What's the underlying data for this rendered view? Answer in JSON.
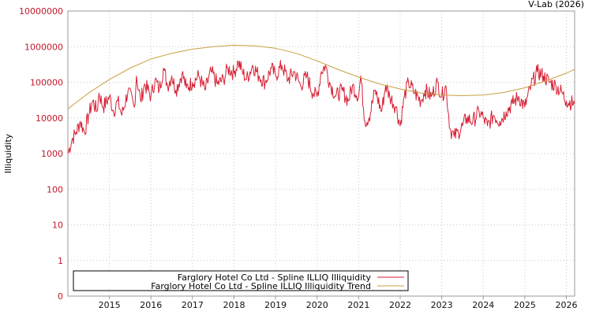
{
  "watermark": "V-Lab (2026)",
  "chart_data": {
    "type": "line",
    "title": "",
    "xlabel": "",
    "ylabel": "Illiquidity",
    "yscale": "log",
    "y_ticks": [
      {
        "value": 0,
        "label": "0"
      },
      {
        "value": 1,
        "label": "1"
      },
      {
        "value": 10,
        "label": "10"
      },
      {
        "value": 100,
        "label": "100"
      },
      {
        "value": 1000,
        "label": "1000"
      },
      {
        "value": 10000,
        "label": "10000"
      },
      {
        "value": 100000,
        "label": "100000"
      },
      {
        "value": 1000000,
        "label": "1000000"
      },
      {
        "value": 10000000,
        "label": "10000000"
      }
    ],
    "x_ticks": [
      "2015",
      "2016",
      "2017",
      "2018",
      "2019",
      "2020",
      "2021",
      "2022",
      "2023",
      "2024",
      "2025",
      "2026"
    ],
    "xlim": [
      2014.0,
      2026.2
    ],
    "grid": true,
    "legend_position": "bottom-left",
    "series": [
      {
        "name": "Farglory Hotel Co Ltd - Spline ILLIQ Illiquidity",
        "color": "#d62034",
        "x": [
          2014.0,
          2014.1,
          2014.2,
          2014.3,
          2014.4,
          2014.5,
          2014.6,
          2014.7,
          2014.75,
          2014.85,
          2015.0,
          2015.1,
          2015.2,
          2015.3,
          2015.45,
          2015.6,
          2015.65,
          2015.75,
          2015.85,
          2016.0,
          2016.1,
          2016.2,
          2016.3,
          2016.4,
          2016.5,
          2016.6,
          2016.75,
          2016.85,
          2017.0,
          2017.15,
          2017.3,
          2017.45,
          2017.6,
          2017.75,
          2017.85,
          2018.0,
          2018.1,
          2018.2,
          2018.3,
          2018.45,
          2018.6,
          2018.75,
          2018.9,
          2019.0,
          2019.15,
          2019.3,
          2019.45,
          2019.6,
          2019.75,
          2019.9,
          2020.0,
          2020.1,
          2020.2,
          2020.3,
          2020.45,
          2020.6,
          2020.75,
          2020.85,
          2021.0,
          2021.05,
          2021.15,
          2021.25,
          2021.4,
          2021.55,
          2021.65,
          2021.75,
          2021.9,
          2022.0,
          2022.1,
          2022.2,
          2022.35,
          2022.5,
          2022.6,
          2022.75,
          2022.9,
          2023.0,
          2023.1,
          2023.2,
          2023.3,
          2023.4,
          2023.5,
          2023.6,
          2023.75,
          2023.9,
          2024.0,
          2024.1,
          2024.25,
          2024.4,
          2024.55,
          2024.7,
          2024.85,
          2025.0,
          2025.15,
          2025.3,
          2025.45,
          2025.6,
          2025.75,
          2025.9,
          2026.0,
          2026.2
        ],
        "values": [
          1000,
          2500,
          4000,
          8000,
          4000,
          12000,
          30000,
          15000,
          50000,
          20000,
          40000,
          15000,
          30000,
          12000,
          60000,
          20000,
          150000,
          30000,
          90000,
          40000,
          120000,
          60000,
          250000,
          80000,
          150000,
          60000,
          180000,
          70000,
          100000,
          150000,
          60000,
          200000,
          90000,
          120000,
          250000,
          180000,
          380000,
          200000,
          120000,
          300000,
          150000,
          100000,
          250000,
          150000,
          300000,
          120000,
          200000,
          80000,
          150000,
          50000,
          40000,
          200000,
          300000,
          100000,
          40000,
          60000,
          30000,
          80000,
          40000,
          150000,
          8000,
          10000,
          60000,
          15000,
          80000,
          40000,
          20000,
          6000,
          40000,
          100000,
          50000,
          30000,
          60000,
          40000,
          100000,
          40000,
          80000,
          5000,
          3000,
          4000,
          6000,
          10000,
          8000,
          15000,
          10000,
          6000,
          12000,
          8000,
          15000,
          25000,
          40000,
          20000,
          80000,
          200000,
          150000,
          100000,
          80000,
          50000,
          30000,
          25000
        ]
      },
      {
        "name": "Farglory Hotel Co Ltd - Spline ILLIQ Illiquidity Trend",
        "color": "#c8a040",
        "x": [
          2014.0,
          2014.5,
          2015.0,
          2015.5,
          2016.0,
          2016.5,
          2017.0,
          2017.5,
          2018.0,
          2018.5,
          2019.0,
          2019.5,
          2020.0,
          2020.5,
          2021.0,
          2021.5,
          2022.0,
          2022.5,
          2023.0,
          2023.5,
          2024.0,
          2024.5,
          2025.0,
          2025.5,
          2026.0,
          2026.2
        ],
        "values": [
          18000,
          50000,
          120000,
          250000,
          450000,
          650000,
          850000,
          1000000,
          1100000,
          1050000,
          900000,
          650000,
          400000,
          230000,
          140000,
          90000,
          65000,
          50000,
          44000,
          42000,
          44000,
          52000,
          70000,
          110000,
          180000,
          230000
        ]
      }
    ]
  }
}
